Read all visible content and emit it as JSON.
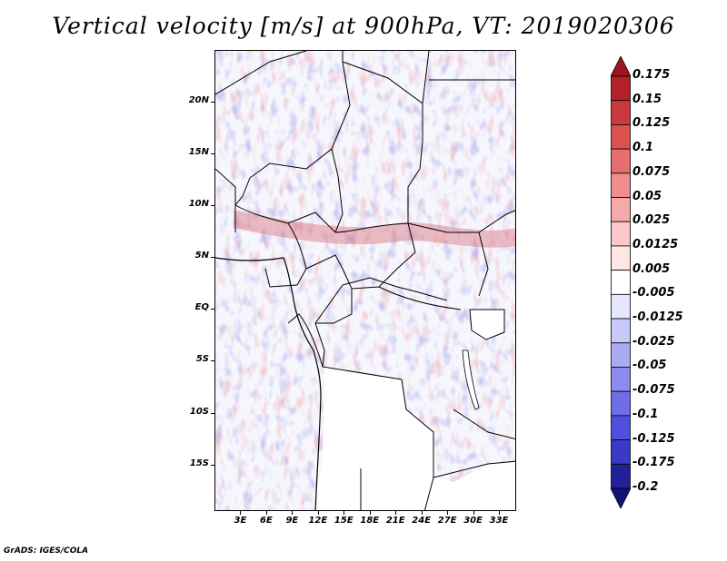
{
  "title": "Vertical velocity [m/s] at 900hPa, VT: 2019020306",
  "credit": "GrADS: IGES/COLA",
  "map": {
    "latitude_labels": [
      "20N",
      "15N",
      "10N",
      "5N",
      "EQ",
      "5S",
      "10S",
      "15S"
    ],
    "latitudes": [
      20,
      15,
      10,
      5,
      0,
      -5,
      -10,
      -15
    ],
    "longitude_labels": [
      "3E",
      "6E",
      "9E",
      "12E",
      "15E",
      "18E",
      "21E",
      "24E",
      "27E",
      "30E",
      "33E"
    ],
    "longitudes": [
      3,
      6,
      9,
      12,
      15,
      18,
      21,
      24,
      27,
      30,
      33
    ],
    "lat_range": [
      -19.5,
      25
    ],
    "lon_range": [
      0,
      35
    ]
  },
  "colorbar": {
    "labels": [
      "0.175",
      "0.15",
      "0.125",
      "0.1",
      "0.075",
      "0.05",
      "0.025",
      "0.0125",
      "0.005",
      "-0.005",
      "-0.0125",
      "-0.025",
      "-0.05",
      "-0.075",
      "-0.1",
      "-0.125",
      "-0.175",
      "-0.2"
    ],
    "colors": [
      "#a0141e",
      "#b4202a",
      "#c83a3e",
      "#dc5050",
      "#e66e6e",
      "#f08c8c",
      "#f5aaaa",
      "#fac8c8",
      "#ffe6e6",
      "#ffffff",
      "#e6e6ff",
      "#c8c8fa",
      "#aaaaf5",
      "#8c8cf0",
      "#6e6ee6",
      "#5050dc",
      "#3a3ac8",
      "#20209a",
      "#141478"
    ]
  }
}
